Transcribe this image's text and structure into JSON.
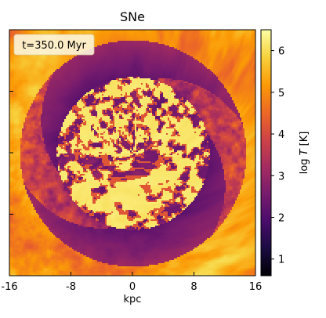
{
  "chart_data": {
    "type": "heatmap",
    "title": "SNe",
    "annotation": "t=350.0 Myr",
    "xlabel": "kpc",
    "ylabel": "",
    "x_ticks": [
      "-16",
      "-8",
      "0",
      "8",
      "16"
    ],
    "x_tick_values": [
      -16,
      -8,
      0,
      8,
      16
    ],
    "xlim": [
      -16,
      16
    ],
    "ylim": [
      -16,
      16
    ],
    "colorbar": {
      "label_prefix": "log ",
      "label_var": "T",
      "label_suffix": " [K]",
      "range": [
        0.6,
        6.5
      ],
      "ticks": [
        "1",
        "2",
        "3",
        "4",
        "5",
        "6"
      ],
      "tick_values": [
        1,
        2,
        3,
        4,
        5,
        6
      ],
      "colormap": "inferno",
      "colors": [
        "#000004",
        "#1b0c41",
        "#4a0c6b",
        "#781c6d",
        "#a52c60",
        "#cf4446",
        "#ed6925",
        "#fb9b06",
        "#f7d13d",
        "#fcffa4"
      ]
    },
    "structure": {
      "description_values": {
        "hot_core_logT": 6.0,
        "spiral_shell_logT": 2.0,
        "outer_warm_logT": 4.5,
        "spiral_arms": 2
      }
    }
  }
}
